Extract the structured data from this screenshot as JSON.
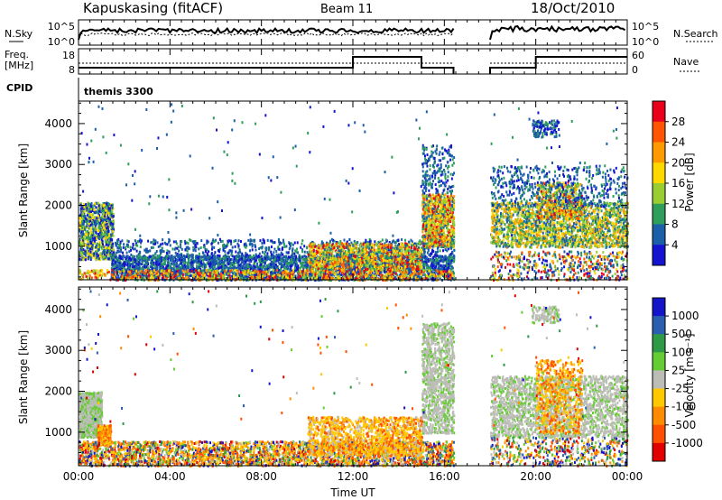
{
  "header": {
    "station": "Kapuskasing (fitACF)",
    "beam": "Beam 11",
    "date": "18/Oct/2010"
  },
  "strips": {
    "nsky_label": "N.Sky",
    "nsky_ticks": [
      "10^5",
      "10^0"
    ],
    "nsearch_label": "N.Search",
    "nsearch_ticks": [
      "10^5",
      "10^0"
    ],
    "freq_label_1": "Freq.",
    "freq_label_2": "[MHz]",
    "freq_ticks": [
      "18",
      "8"
    ],
    "nave_label": "Nave",
    "nave_ticks": [
      "60",
      "0"
    ],
    "cpid_label": "CPID",
    "cpid_value": "themis 3300"
  },
  "power_panel": {
    "ylabel": "Slant Range [km]",
    "yticks": [
      "4000",
      "3000",
      "2000",
      "1000"
    ],
    "colorbar_label": "Power [dB]",
    "colorbar_ticks": [
      "28",
      "24",
      "20",
      "16",
      "12",
      "8",
      "4"
    ],
    "colors": [
      "#e8001a",
      "#ff5500",
      "#ff9900",
      "#ffd800",
      "#9acd32",
      "#2e9e5a",
      "#1a5fa8",
      "#1414d0"
    ]
  },
  "velocity_panel": {
    "ylabel": "Slant Range [km]",
    "yticks": [
      "4000",
      "3000",
      "2000",
      "1000"
    ],
    "colorbar_label": "Velocity [m s⁻¹]",
    "colorbar_ticks": [
      "1000",
      "500",
      "100",
      "25",
      "-25",
      "-100",
      "-500",
      "-1000"
    ],
    "colors": [
      "#1414c8",
      "#2a5fb0",
      "#2e9a46",
      "#66cc33",
      "#bdbdb8",
      "#ffc800",
      "#ff8c00",
      "#ff5000",
      "#e00000"
    ]
  },
  "xaxis": {
    "label": "Time UT",
    "ticks": [
      "00:00",
      "04:00",
      "08:00",
      "12:00",
      "16:00",
      "20:00",
      "00:00"
    ]
  },
  "chart_data": {
    "type": "heatmap",
    "title": "Kapuskasing (fitACF)",
    "subtitle": "Beam 11",
    "date": "18/Oct/2010",
    "xlabel": "Time UT",
    "ylabel": "Slant Range [km]",
    "xlim_hours": [
      0,
      24
    ],
    "ylim_km": [
      180,
      4550
    ],
    "data_gap_hours": [
      16.4,
      18.0
    ],
    "panels": [
      {
        "name": "Power",
        "units": "dB",
        "colorbar_range": [
          0,
          30
        ],
        "colorbar_ticks": [
          28,
          24,
          20,
          16,
          12,
          8,
          4
        ],
        "scatter_regions": [
          {
            "t": [
              0.0,
              1.4
            ],
            "range_km": [
              700,
              2100
            ],
            "level": "medium-high"
          },
          {
            "t": [
              1.4,
              16.4
            ],
            "range_km": [
              250,
              1200
            ],
            "level": "low-medium"
          },
          {
            "t": [
              10.5,
              14.5
            ],
            "range_km": [
              450,
              1000
            ],
            "level": "high"
          },
          {
            "t": [
              15.0,
              16.4
            ],
            "range_km": [
              1000,
              2200
            ],
            "level": "high"
          },
          {
            "t": [
              18.0,
              24.0
            ],
            "range_km": [
              600,
              2600
            ],
            "level": "high"
          },
          {
            "t": [
              19.8,
              21.0
            ],
            "range_km": [
              3700,
              4100
            ],
            "level": "low"
          }
        ]
      },
      {
        "name": "Velocity",
        "units": "m s-1",
        "colorbar_ticks": [
          1000,
          500,
          100,
          25,
          -25,
          -100,
          -500,
          -1000
        ],
        "scatter_regions": [
          {
            "t": [
              0.0,
              1.0
            ],
            "range_km": [
              900,
              2000
            ],
            "level": "near zero"
          },
          {
            "t": [
              10.5,
              14.5
            ],
            "range_km": [
              400,
              1300
            ],
            "level": "-100 to -500"
          },
          {
            "t": [
              15.0,
              16.4
            ],
            "range_km": [
              1000,
              3700
            ],
            "level": "near zero"
          },
          {
            "t": [
              18.0,
              22.5
            ],
            "range_km": [
              900,
              2500
            ],
            "level": "near zero"
          },
          {
            "t": [
              20.5,
              22.0
            ],
            "range_km": [
              1000,
              2800
            ],
            "level": "-100 to -500"
          }
        ]
      }
    ]
  }
}
